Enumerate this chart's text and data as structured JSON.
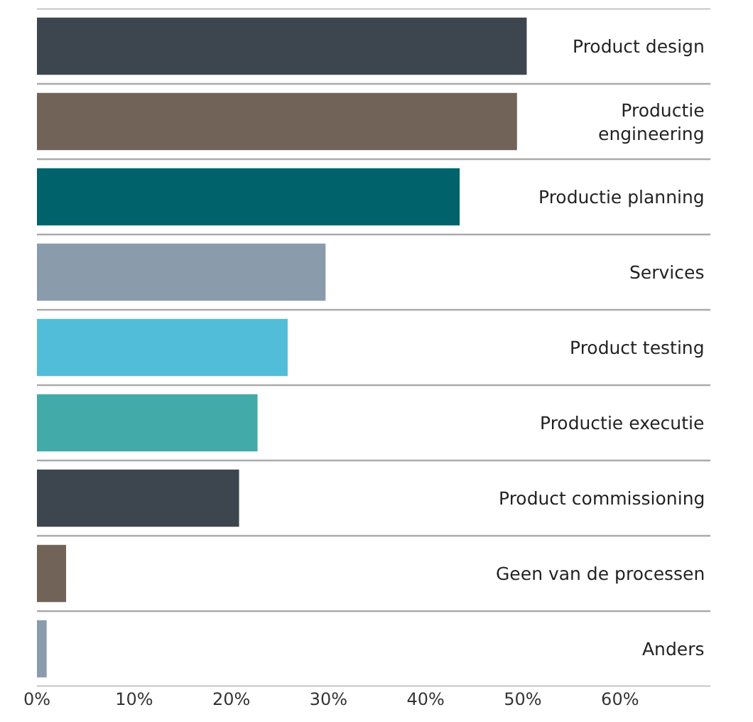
{
  "chart_data": {
    "type": "bar",
    "orientation": "horizontal",
    "categories": [
      "Product design",
      "Productie\nengineering",
      "Productie planning",
      "Services",
      "Product testing",
      "Productie executie",
      "Product commissioning",
      "Geen van de processen",
      "Anders"
    ],
    "values": [
      50.4,
      49.4,
      43.5,
      29.7,
      25.8,
      22.7,
      20.8,
      3.0,
      1.0
    ],
    "colors": [
      "#3d464e",
      "#716358",
      "#00636c",
      "#8a9cab",
      "#52bdd8",
      "#42aaa9",
      "#3d464e",
      "#716358",
      "#8a9cab"
    ],
    "xlim": [
      0,
      69.3
    ],
    "xticks": [
      {
        "value": 0,
        "label": "0%"
      },
      {
        "value": 10,
        "label": "10%"
      },
      {
        "value": 20,
        "label": "20%"
      },
      {
        "value": 30,
        "label": "30%"
      },
      {
        "value": 40,
        "label": "40%"
      },
      {
        "value": 50,
        "label": "50%"
      },
      {
        "value": 60,
        "label": "60%"
      }
    ],
    "grid": "y"
  }
}
